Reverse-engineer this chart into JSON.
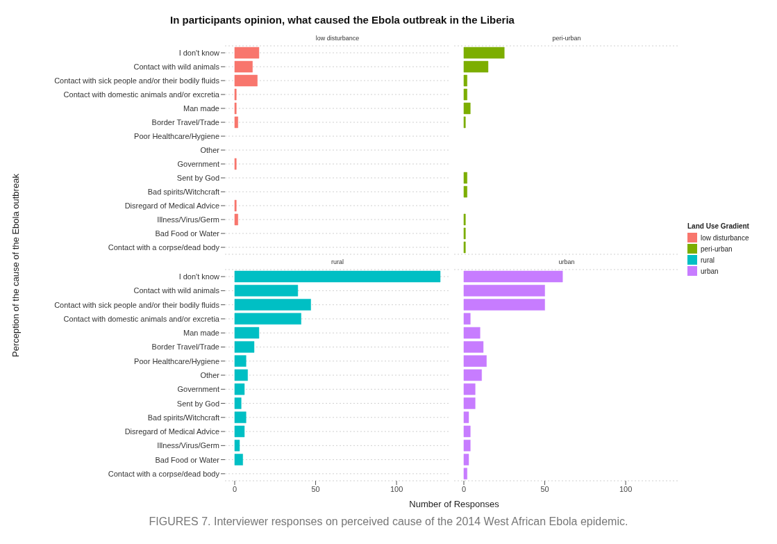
{
  "chart_data": [
    {
      "type": "bar",
      "orientation": "horizontal",
      "title": "In participants opinion, what caused the Ebola outbreak in the Liberia",
      "subtitle": "low disturbance",
      "ylabel": "Perception of the cause of the Ebola outbreak",
      "legend_title": "Land Use Gradient",
      "legend": "right",
      "grid": "y",
      "tick_labels": "y",
      "categories": [
        "I don't know",
        "Contact with wild animals",
        "Contact with sick people and/or their bodily fluids",
        "Contact with domestic animals and/or excretia",
        "Man made",
        "Border Travel/Trade",
        "Poor Healthcare/Hygiene",
        "Other",
        "Government",
        "Sent by God",
        "Bad spirits/Witchcraft",
        "Disregard of Medical Advice",
        "Illness/Virus/Germ",
        "Bad Food or Water",
        "Contact with a corpse/dead body"
      ],
      "series": [
        {
          "name": "low disturbance",
          "color": "#f8766d",
          "values": [
            15,
            11,
            14,
            1,
            1,
            2,
            0,
            0,
            1,
            0,
            0,
            1,
            2,
            0,
            0
          ]
        }
      ],
      "xlim": [
        -6,
        133
      ],
      "xticks": [
        0,
        50,
        100
      ]
    },
    {
      "type": "bar",
      "orientation": "horizontal",
      "subtitle": "peri-urban",
      "legend": "right",
      "grid": "y",
      "tick_labels": false,
      "categories": [
        "I don't know",
        "Contact with wild animals",
        "Contact with sick people and/or their bodily fluids",
        "Contact with domestic animals and/or excretia",
        "Man made",
        "Border Travel/Trade",
        "Poor Healthcare/Hygiene",
        "Other",
        "Government",
        "Sent by God",
        "Bad spirits/Witchcraft",
        "Disregard of Medical Advice",
        "Illness/Virus/Germ",
        "Bad Food or Water",
        "Contact with a corpse/dead body"
      ],
      "series": [
        {
          "name": "peri-urban",
          "color": "#7cae00",
          "values": [
            25,
            15,
            2,
            2,
            4,
            1,
            0,
            0,
            0,
            2,
            2,
            0,
            1,
            1,
            1
          ]
        }
      ],
      "xlim": [
        -6,
        133
      ],
      "xticks": [
        0,
        50,
        100
      ]
    },
    {
      "type": "bar",
      "orientation": "horizontal",
      "subtitle": "rural",
      "xlabel": "Number of Responses",
      "legend": "right",
      "grid": "y",
      "categories": [
        "I don't know",
        "Contact with wild animals",
        "Contact with sick people and/or their bodily fluids",
        "Contact with domestic animals and/or excretia",
        "Man made",
        "Border Travel/Trade",
        "Poor Healthcare/Hygiene",
        "Other",
        "Government",
        "Sent by God",
        "Bad spirits/Witchcraft",
        "Disregard of Medical Advice",
        "Illness/Virus/Germ",
        "Bad Food or Water",
        "Contact with a corpse/dead body"
      ],
      "series": [
        {
          "name": "rural",
          "color": "#00bfc4",
          "values": [
            127,
            39,
            47,
            41,
            15,
            12,
            7,
            8,
            6,
            4,
            7,
            6,
            3,
            5,
            0
          ]
        }
      ],
      "xlim": [
        -6,
        133
      ],
      "xticks": [
        0,
        50,
        100
      ]
    },
    {
      "type": "bar",
      "orientation": "horizontal",
      "subtitle": "urban",
      "legend": "right",
      "grid": "y",
      "tick_labels": "x",
      "categories": [
        "I don't know",
        "Contact with wild animals",
        "Contact with sick people and/or their bodily fluids",
        "Contact with domestic animals and/or excretia",
        "Man made",
        "Border Travel/Trade",
        "Poor Healthcare/Hygiene",
        "Other",
        "Government",
        "Sent by God",
        "Bad spirits/Witchcraft",
        "Disregard of Medical Advice",
        "Illness/Virus/Germ",
        "Bad Food or Water",
        "Contact with a corpse/dead body"
      ],
      "series": [
        {
          "name": "urban",
          "color": "#c77cff",
          "values": [
            61,
            50,
            50,
            4,
            10,
            12,
            14,
            11,
            7,
            7,
            3,
            4,
            4,
            3,
            2
          ]
        }
      ],
      "xlim": [
        -6,
        133
      ],
      "xticks": [
        0,
        50,
        100
      ],
      "annotations": [
        "FIGURES 7. Interviewer responses on perceived cause of the 2014 West African Ebola epidemic."
      ]
    }
  ]
}
